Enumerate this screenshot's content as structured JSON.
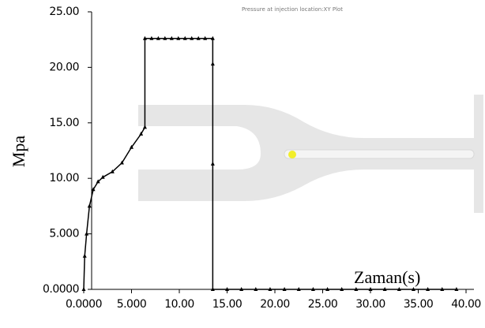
{
  "chart_data": {
    "type": "line",
    "title": "Pressure at injection location:XY Plot",
    "x_label": "Zaman(s)",
    "y_label": "Mpa",
    "x": [
      0,
      0.1,
      0.3,
      0.6,
      1,
      1.5,
      2,
      3,
      4,
      5,
      6,
      6.4,
      6.4,
      7.1,
      7.8,
      8.5,
      9.2,
      9.9,
      10.6,
      11.3,
      12,
      12.7,
      13.5,
      13.5,
      13.5,
      13.5,
      15,
      16.5,
      18,
      19.5,
      21,
      22.5,
      24,
      25.5,
      27,
      28.5,
      30,
      31.5,
      33,
      34.5,
      36,
      37.5,
      39
    ],
    "series": [
      {
        "color": "#000000",
        "values": [
          0,
          3,
          5,
          7.5,
          9,
          9.7,
          10.1,
          10.6,
          11.4,
          12.8,
          14,
          14.6,
          22.6,
          22.6,
          22.6,
          22.6,
          22.6,
          22.6,
          22.6,
          22.6,
          22.6,
          22.6,
          22.6,
          20.3,
          11.3,
          0,
          0,
          0,
          0,
          0,
          0,
          0,
          0,
          0,
          0,
          0,
          0,
          0,
          0,
          0,
          0,
          0,
          0
        ]
      }
    ],
    "xlim": [
      0,
      40
    ],
    "ylim": [
      0,
      25
    ],
    "xticks": [
      {
        "value": 0,
        "label": "0.0000"
      },
      {
        "value": 5,
        "label": "5.000"
      },
      {
        "value": 10,
        "label": "10.00"
      },
      {
        "value": 15,
        "label": "15.00"
      },
      {
        "value": 20,
        "label": "20.00"
      },
      {
        "value": 25,
        "label": "25.00"
      },
      {
        "value": 30,
        "label": "30.00"
      },
      {
        "value": 35,
        "label": "35.00"
      },
      {
        "value": 40,
        "label": "40.00"
      }
    ],
    "yticks": [
      {
        "value": 0,
        "label": "0.0000"
      },
      {
        "value": 5,
        "label": "5.000"
      },
      {
        "value": 10,
        "label": "10.00"
      },
      {
        "value": 15,
        "label": "15.00"
      },
      {
        "value": 20,
        "label": "20.00"
      },
      {
        "value": 25,
        "label": "25.00"
      }
    ],
    "grid": false
  }
}
